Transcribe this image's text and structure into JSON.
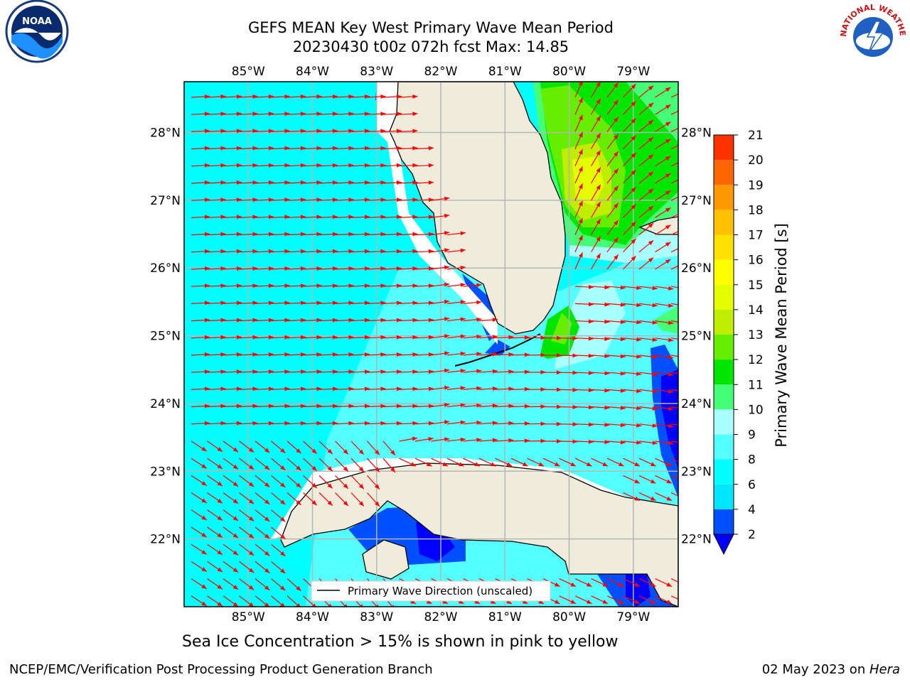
{
  "title_line1": "GEFS MEAN Key West Primary Wave Mean Period",
  "title_line2": "20230430 t00z 072h fcst   Max: 14.85",
  "map": {
    "lon_labels": [
      "85°W",
      "84°W",
      "83°W",
      "82°W",
      "81°W",
      "80°W",
      "79°W"
    ],
    "lon_values": [
      -85,
      -84,
      -83,
      -82,
      -81,
      -80,
      -79
    ],
    "lat_labels": [
      "28°N",
      "27°N",
      "26°N",
      "25°N",
      "24°N",
      "23°N",
      "22°N"
    ],
    "lat_values": [
      28,
      27,
      26,
      25,
      24,
      23,
      22
    ],
    "extent": {
      "lon_min": -86.0,
      "lon_max": -78.3,
      "lat_min": 21.0,
      "lat_max": 28.75
    },
    "land_color": "#efecdc",
    "ocean_default_color": "#00ffff",
    "gridline_color": "#b5b5b5",
    "arrow_color": "#ff0000",
    "legend_label": "Primary Wave Direction (unscaled)"
  },
  "colorbar": {
    "label": "Primary Wave Mean Period [s]",
    "tick_values": [
      2,
      4,
      6,
      8,
      9,
      10,
      11,
      12,
      13,
      14,
      15,
      16,
      17,
      18,
      19,
      20,
      21
    ],
    "tick_labels": [
      "2",
      "4",
      "6",
      "8",
      "9",
      "10",
      "11",
      "12",
      "13",
      "14",
      "15",
      "16",
      "17",
      "18",
      "19",
      "20",
      "21"
    ],
    "colors": [
      "#0050ff",
      "#00e6ff",
      "#00ffff",
      "#56ffff",
      "#aaffff",
      "#44ff77",
      "#00e600",
      "#66ee00",
      "#bfee00",
      "#e6ff00",
      "#ffff00",
      "#ffe000",
      "#ffc000",
      "#ff9900",
      "#ff6600",
      "#ff3300",
      "#ff0000"
    ],
    "under_color": "#0000ff"
  },
  "caption": "Sea Ice Concentration > 15% is shown in pink to yellow",
  "credit": "NCEP/EMC/Verification Post Processing Product Generation Branch",
  "date_text": "02 May 2023 on ",
  "date_machine": "Hera",
  "logos": {
    "noaa_text": "NOAA",
    "nws_text": "NATIONAL WEATHER SERVICE"
  }
}
